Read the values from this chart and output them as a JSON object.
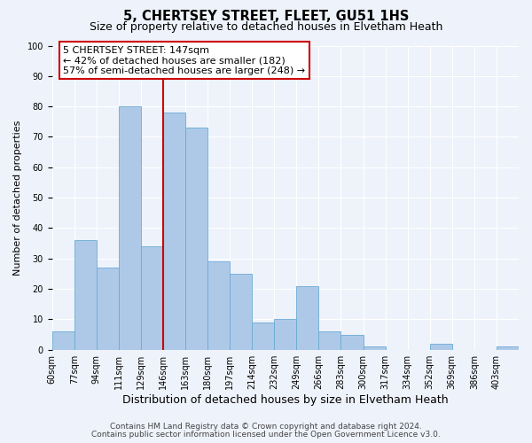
{
  "title": "5, CHERTSEY STREET, FLEET, GU51 1HS",
  "subtitle": "Size of property relative to detached houses in Elvetham Heath",
  "xlabel": "Distribution of detached houses by size in Elvetham Heath",
  "ylabel": "Number of detached properties",
  "bin_labels": [
    "60sqm",
    "77sqm",
    "94sqm",
    "111sqm",
    "129sqm",
    "146sqm",
    "163sqm",
    "180sqm",
    "197sqm",
    "214sqm",
    "232sqm",
    "249sqm",
    "266sqm",
    "283sqm",
    "300sqm",
    "317sqm",
    "334sqm",
    "352sqm",
    "369sqm",
    "386sqm",
    "403sqm"
  ],
  "bar_heights": [
    6,
    36,
    27,
    80,
    34,
    78,
    73,
    29,
    25,
    9,
    10,
    21,
    6,
    5,
    1,
    0,
    0,
    2,
    0,
    0,
    1
  ],
  "bar_color": "#aec9e8",
  "bar_edge_color": "#6aaad4",
  "vline_x": 5,
  "vline_color": "#cc0000",
  "ylim": [
    0,
    100
  ],
  "annotation_text": "5 CHERTSEY STREET: 147sqm\n← 42% of detached houses are smaller (182)\n57% of semi-detached houses are larger (248) →",
  "annotation_box_facecolor": "#ffffff",
  "annotation_box_edgecolor": "#cc0000",
  "footnote1": "Contains HM Land Registry data © Crown copyright and database right 2024.",
  "footnote2": "Contains public sector information licensed under the Open Government Licence v3.0.",
  "background_color": "#eef2fa",
  "grid_color": "#ffffff",
  "title_fontsize": 10.5,
  "subtitle_fontsize": 9,
  "xlabel_fontsize": 9,
  "ylabel_fontsize": 8,
  "tick_fontsize": 7,
  "annotation_fontsize": 8,
  "footnote_fontsize": 6.5
}
